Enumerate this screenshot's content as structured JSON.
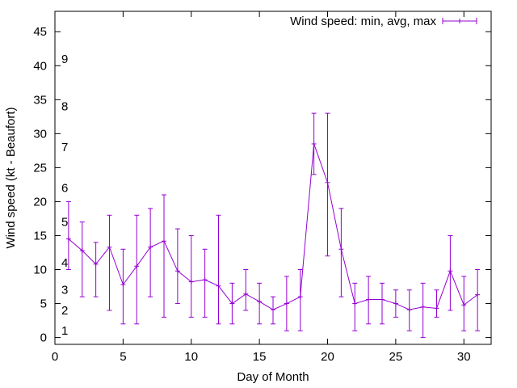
{
  "chart_data": {
    "type": "line",
    "title": "",
    "xlabel": "Day of Month",
    "ylabel": "Wind speed (kt - Beaufort)",
    "xlim": [
      0,
      32
    ],
    "ylim": [
      -1,
      48
    ],
    "xticks": [
      0,
      5,
      10,
      15,
      20,
      25,
      30
    ],
    "yticks": [
      0,
      5,
      10,
      15,
      20,
      25,
      30,
      35,
      40,
      45
    ],
    "grid": false,
    "legend_position": "top-right",
    "series_color": "#9400d3",
    "series": [
      {
        "name": "Wind speed: min, avg, max",
        "x": [
          1,
          2,
          3,
          4,
          5,
          6,
          7,
          8,
          9,
          10,
          11,
          12,
          13,
          14,
          15,
          16,
          17,
          18,
          19,
          20,
          21,
          22,
          23,
          24,
          25,
          26,
          27,
          28,
          29,
          30,
          31
        ],
        "avg": [
          14.5,
          12.8,
          10.8,
          13.3,
          7.8,
          10.5,
          13.3,
          14.2,
          9.8,
          8.2,
          8.5,
          7.6,
          5.0,
          6.4,
          5.3,
          4.1,
          5.0,
          6.0,
          28.5,
          22.8,
          13.0,
          5.0,
          5.6,
          5.6,
          5.0,
          4.1,
          4.5,
          4.3,
          9.8,
          4.8,
          6.3
        ],
        "min": [
          10,
          6,
          6,
          4,
          2,
          2,
          6,
          3,
          5,
          3,
          3,
          2,
          2,
          4,
          2,
          2,
          1,
          1,
          24,
          12,
          6,
          1,
          2,
          2,
          3,
          1,
          0,
          3,
          4,
          1,
          1
        ],
        "max": [
          20,
          17,
          14,
          18,
          13,
          18,
          19,
          21,
          16,
          15,
          13,
          18,
          8,
          10,
          8,
          6,
          9,
          10,
          33,
          33,
          19,
          8,
          9,
          8,
          7,
          7,
          8,
          7,
          15,
          9,
          10
        ]
      }
    ],
    "beaufort_labels": [
      {
        "label": "1",
        "value": 1
      },
      {
        "label": "2",
        "value": 4
      },
      {
        "label": "3",
        "value": 7
      },
      {
        "label": "4",
        "value": 11
      },
      {
        "label": "5",
        "value": 17
      },
      {
        "label": "6",
        "value": 22
      },
      {
        "label": "7",
        "value": 28
      },
      {
        "label": "8",
        "value": 34
      },
      {
        "label": "9",
        "value": 41
      }
    ]
  }
}
